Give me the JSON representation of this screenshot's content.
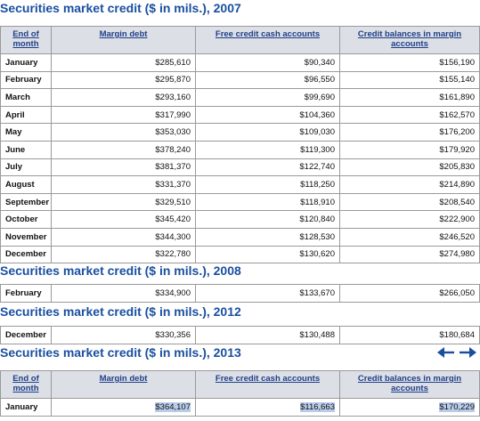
{
  "headers": {
    "month": "End of month",
    "margin": "Margin debt",
    "free": "Free credit cash accounts",
    "credit": "Credit balances in margin accounts"
  },
  "sections": [
    {
      "title": "Securities market credit ($ in mils.), 2007",
      "rows": [
        {
          "month": "January",
          "margin": "$285,610",
          "free": "$90,340",
          "credit": "$156,190"
        },
        {
          "month": "February",
          "margin": "$295,870",
          "free": "$96,550",
          "credit": "$155,140"
        },
        {
          "month": "March",
          "margin": "$293,160",
          "free": "$99,690",
          "credit": "$161,890"
        },
        {
          "month": "April",
          "margin": "$317,990",
          "free": "$104,360",
          "credit": "$162,570"
        },
        {
          "month": "May",
          "margin": "$353,030",
          "free": "$109,030",
          "credit": "$176,200"
        },
        {
          "month": "June",
          "margin": "$378,240",
          "free": "$119,300",
          "credit": "$179,920"
        },
        {
          "month": "July",
          "margin": "$381,370",
          "free": "$122,740",
          "credit": "$205,830"
        },
        {
          "month": "August",
          "margin": "$331,370",
          "free": "$118,250",
          "credit": "$214,890"
        },
        {
          "month": "September",
          "margin": "$329,510",
          "free": "$118,910",
          "credit": "$208,540"
        },
        {
          "month": "October",
          "margin": "$345,420",
          "free": "$120,840",
          "credit": "$222,900"
        },
        {
          "month": "November",
          "margin": "$344,300",
          "free": "$128,530",
          "credit": "$246,520"
        },
        {
          "month": "December",
          "margin": "$322,780",
          "free": "$130,620",
          "credit": "$274,980"
        }
      ]
    },
    {
      "title": "Securities market credit ($ in mils.), 2008",
      "rows": [
        {
          "month": "February",
          "margin": "$334,900",
          "free": "$133,670",
          "credit": "$266,050"
        }
      ]
    },
    {
      "title": "Securities market credit ($ in mils.), 2012",
      "rows": [
        {
          "month": "December",
          "margin": "$330,356",
          "free": "$130,488",
          "credit": "$180,684"
        }
      ]
    },
    {
      "title": "Securities market credit ($ in mils.), 2013",
      "rows": [
        {
          "month": "January",
          "margin": "$364,107",
          "free": "$116,663",
          "credit": "$170,229"
        }
      ]
    }
  ],
  "icons": {
    "scroll_left": "arrow-left-icon",
    "scroll_right": "arrow-right-icon"
  },
  "colors": {
    "title": "#1a4fa0",
    "header_bg": "#dcdfe6",
    "header_text": "#1f3f88",
    "highlight": "#b9cdea"
  }
}
